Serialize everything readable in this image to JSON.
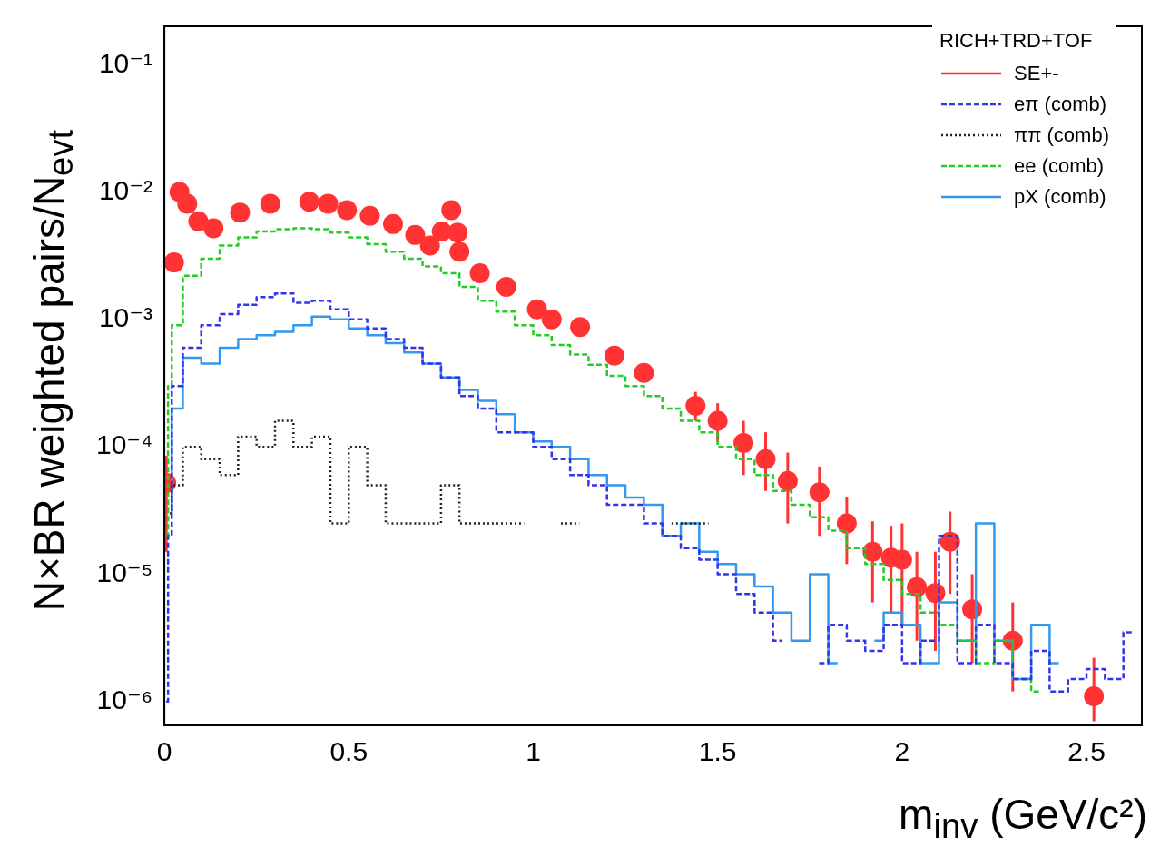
{
  "chart_data": {
    "type": "step",
    "xlabel": "m$_{inv}$ (GeV/c²)",
    "ylabel": "N×BR weighted pairs/N$_{evt}$",
    "legend_title": "RICH+TRD+TOF",
    "legend": "top right",
    "log": "y",
    "xlim": [
      0,
      2.65
    ],
    "xticks": [
      0,
      0.5,
      1,
      1.5,
      2,
      2.5
    ],
    "ylim": [
      6.5e-07,
      0.2
    ],
    "yticks": [
      {
        "value": 1e-06,
        "label": "10⁻⁶"
      },
      {
        "value": 1e-05,
        "label": "10⁻⁵"
      },
      {
        "value": 0.0001,
        "label": "10⁻⁴"
      },
      {
        "value": 0.001,
        "label": "10⁻³"
      },
      {
        "value": 0.01,
        "label": "10⁻²"
      },
      {
        "value": 0.1,
        "label": "10⁻¹"
      }
    ],
    "x": [
      0.005,
      0.015,
      0.025,
      0.075,
      0.125,
      0.175,
      0.225,
      0.275,
      0.325,
      0.375,
      0.425,
      0.475,
      0.525,
      0.575,
      0.625,
      0.675,
      0.725,
      0.775,
      0.825,
      0.875,
      0.925,
      0.975,
      1.025,
      1.075,
      1.125,
      1.175,
      1.225,
      1.275,
      1.325,
      1.375,
      1.425,
      1.475,
      1.525,
      1.575,
      1.625,
      1.675,
      1.725,
      1.775,
      1.825,
      1.875,
      1.925,
      1.975,
      2.025,
      2.075,
      2.125,
      2.175,
      2.225,
      2.275,
      2.325,
      2.375,
      2.425,
      2.475,
      2.525,
      2.575,
      2.625
    ],
    "series": [
      {
        "name": "SE+-",
        "type": "scatter",
        "marker": "circle",
        "color": "#ff3333",
        "x": [
          0.005,
          0.026,
          0.041,
          0.062,
          0.092,
          0.133,
          0.205,
          0.287,
          0.393,
          0.444,
          0.495,
          0.557,
          0.62,
          0.68,
          0.72,
          0.752,
          0.778,
          0.795,
          0.8,
          0.855,
          0.927,
          1.01,
          1.05,
          1.127,
          1.22,
          1.3,
          1.44,
          1.5,
          1.57,
          1.63,
          1.69,
          1.776,
          1.85,
          1.92,
          1.97,
          2.0,
          2.04,
          2.09,
          2.13,
          2.19,
          2.3,
          2.52
        ],
        "values": [
          5.2e-05,
          0.0028,
          0.01,
          0.0081,
          0.0059,
          0.0052,
          0.0069,
          0.0081,
          0.0084,
          0.0081,
          0.0072,
          0.0065,
          0.0056,
          0.0046,
          0.0038,
          0.0049,
          0.0072,
          0.0048,
          0.0034,
          0.0023,
          0.0018,
          0.0012,
          0.001,
          0.00087,
          0.00052,
          0.00038,
          0.00021,
          0.00016,
          0.000107,
          8e-05,
          5.4e-05,
          4.4e-05,
          2.5e-05,
          1.5e-05,
          1.35e-05,
          1.3e-05,
          7.9e-06,
          7.1e-06,
          1.8e-05,
          5.3e-06,
          3e-06,
          1.1e-06
        ],
        "errors": [
          [
            1.5e-05,
            8.5e-05
          ],
          null,
          null,
          null,
          null,
          null,
          null,
          null,
          null,
          null,
          null,
          null,
          null,
          null,
          null,
          null,
          null,
          null,
          null,
          null,
          null,
          null,
          null,
          null,
          null,
          null,
          [
            0.00016,
            0.00027
          ],
          [
            0.00011,
            0.00022
          ],
          [
            6e-05,
            0.00016
          ],
          [
            4.5e-05,
            0.00013
          ],
          [
            2.5e-05,
            9e-05
          ],
          [
            2e-05,
            7e-05
          ],
          [
            1.2e-05,
            4e-05
          ],
          [
            6e-06,
            2.6e-05
          ],
          [
            5e-06,
            2.4e-05
          ],
          [
            4e-06,
            2.5e-05
          ],
          [
            3e-06,
            1.5e-05
          ],
          [
            2.5e-06,
            1.5e-05
          ],
          [
            7e-06,
            3.1e-05
          ],
          [
            2e-06,
            1e-05
          ],
          [
            1.2e-06,
            6e-06
          ],
          [
            7e-07,
            2.2e-06
          ]
        ]
      },
      {
        "name": "eπ (comb)",
        "line_style": "dashed",
        "color": "#3333ee",
        "values": [
          1e-06,
          2e-05,
          0.0003,
          0.0006,
          0.0009,
          0.0011,
          0.0013,
          0.0015,
          0.0016,
          0.00135,
          0.0014,
          0.0012,
          0.001,
          0.00085,
          0.0007,
          0.0006,
          0.00045,
          0.00035,
          0.00025,
          0.0002,
          0.00013,
          0.00013,
          0.0001,
          8e-05,
          6e-05,
          5e-05,
          3.5e-05,
          3.5e-05,
          2.5e-05,
          2e-05,
          1.6e-05,
          1.3e-05,
          1e-05,
          7e-06,
          5e-06,
          3e-06,
          null,
          2e-06,
          4e-06,
          3e-06,
          2.5e-06,
          4e-06,
          2e-06,
          3e-06,
          2e-05,
          2e-06,
          4e-06,
          2e-06,
          1.5e-06,
          2.5e-06,
          1.2e-06,
          1.5e-06,
          1.8e-06,
          1.5e-06,
          3.5e-06
        ]
      },
      {
        "name": "ππ (comb)",
        "line_style": "dotted",
        "color": "#222222",
        "values": [
          null,
          3e-05,
          5e-05,
          0.0001,
          8e-05,
          6e-05,
          0.00012,
          0.0001,
          0.00016,
          0.0001,
          0.00012,
          2.5e-05,
          0.0001,
          5e-05,
          2.5e-05,
          2.5e-05,
          2.5e-05,
          5e-05,
          2.5e-05,
          2.5e-05,
          2.5e-05,
          2.5e-05,
          null,
          2.5e-05,
          2.5e-05,
          null,
          null,
          null,
          null,
          2.5e-05,
          2.5e-05,
          2.5e-05,
          null,
          null,
          null,
          null,
          null,
          null,
          null,
          null,
          null,
          null,
          null,
          null,
          null,
          null,
          null,
          null,
          null,
          null,
          null,
          null,
          null,
          null,
          null
        ]
      },
      {
        "name": "ee (comb)",
        "line_style": "dashed",
        "color": "#22cc22",
        "values": [
          2e-05,
          0.0003,
          0.0009,
          0.0022,
          0.003,
          0.0038,
          0.0044,
          0.0049,
          0.0051,
          0.0052,
          0.0051,
          0.0048,
          0.0044,
          0.0039,
          0.0034,
          0.003,
          0.0026,
          0.0023,
          0.0018,
          0.0014,
          0.00115,
          0.0009,
          0.00075,
          0.00063,
          0.00053,
          0.00044,
          0.00036,
          0.0003,
          0.00025,
          0.0002,
          0.00016,
          0.00013,
          0.0001,
          8e-05,
          6e-05,
          4.5e-05,
          3.5e-05,
          2.8e-05,
          2.2e-05,
          1.6e-05,
          1.2e-05,
          9e-06,
          7e-06,
          5e-06,
          4e-06,
          3e-06,
          2e-06,
          3e-06,
          1.5e-06,
          1.2e-06,
          null,
          null,
          null,
          null,
          null
        ]
      },
      {
        "name": "pX (comb)",
        "line_style": "solid",
        "color": "#3399ee",
        "values": [
          null,
          3e-05,
          0.0002,
          0.0005,
          0.00045,
          0.0006,
          0.0007,
          0.00075,
          0.0008,
          0.0009,
          0.00105,
          0.001,
          0.00085,
          0.00075,
          0.00065,
          0.00055,
          0.00045,
          0.00035,
          0.00028,
          0.00023,
          0.00018,
          0.00013,
          0.00011,
          0.0001,
          8e-05,
          6e-05,
          5e-05,
          4e-05,
          3.5e-05,
          2e-05,
          2.5e-05,
          1.5e-05,
          1.2e-05,
          1e-05,
          8e-06,
          5e-06,
          3e-06,
          1e-05,
          2e-06,
          null,
          3e-06,
          5e-06,
          4e-06,
          2e-06,
          6e-06,
          3e-06,
          2.5e-05,
          3e-06,
          1.5e-06,
          4e-06,
          2e-06,
          null,
          null,
          null,
          null
        ]
      }
    ]
  }
}
